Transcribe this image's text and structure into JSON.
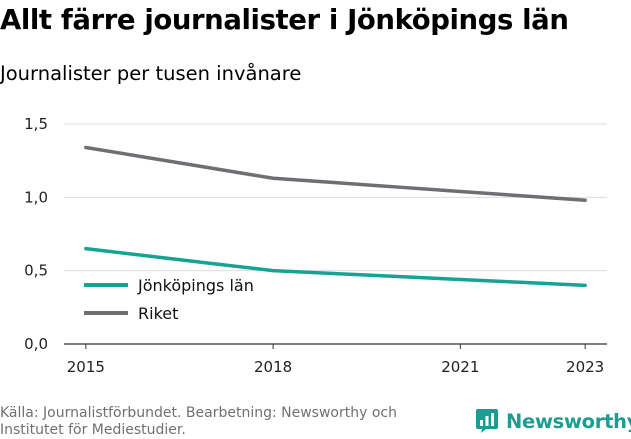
{
  "chart_data": {
    "type": "line",
    "title": "Allt färre journalister i Jönköpings län",
    "subtitle": "Journalister per tusen invånare",
    "x": [
      2015,
      2016,
      2017,
      2018,
      2019,
      2020,
      2021,
      2022,
      2023
    ],
    "x_ticks": [
      "2015",
      "2018",
      "2021",
      "2023"
    ],
    "y_ticks": [
      "0,0",
      "0,5",
      "1,0",
      "1,5"
    ],
    "ylim": [
      0,
      1.5
    ],
    "grid": true,
    "legend_position": "bottom-left",
    "series": [
      {
        "name": "Jönköpings län",
        "color": "#16a394",
        "values": [
          0.65,
          0.6,
          0.55,
          0.5,
          0.48,
          0.46,
          0.44,
          0.42,
          0.4
        ]
      },
      {
        "name": "Riket",
        "color": "#6e6e73",
        "values": [
          1.34,
          1.27,
          1.2,
          1.13,
          1.1,
          1.07,
          1.04,
          1.01,
          0.98
        ]
      }
    ]
  },
  "source": "Källa: Journalistförbundet. Bearbetning: Newsworthy och Institutet för Mediestudier.",
  "logo": {
    "text": "Newsworthy",
    "icon": "newsworthy-logo-icon",
    "color": "#1b9e91"
  }
}
